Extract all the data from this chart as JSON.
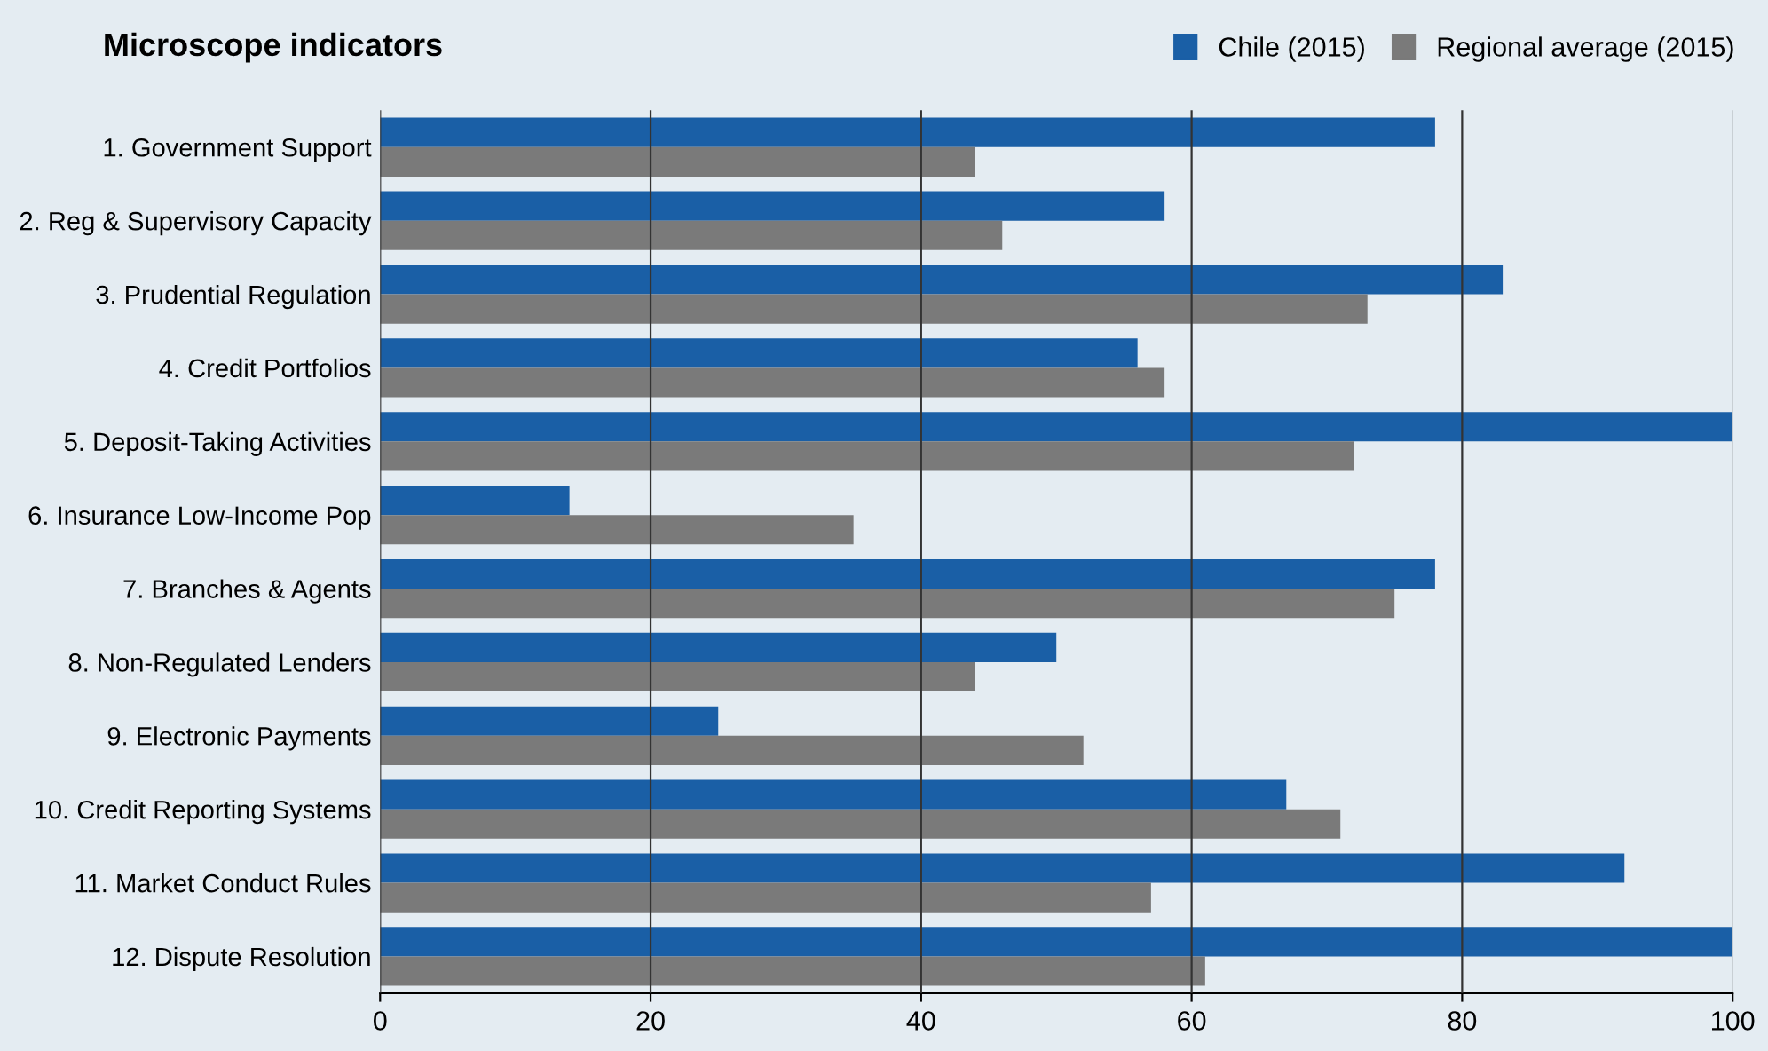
{
  "chart_data": {
    "type": "bar",
    "orientation": "horizontal",
    "title": "Microscope indicators",
    "categories": [
      "1. Government Support",
      "2. Reg & Supervisory Capacity",
      "3. Prudential Regulation",
      "4. Credit Portfolios",
      "5. Deposit-Taking Activities",
      "6. Insurance Low-Income Pop",
      "7. Branches & Agents",
      "8. Non-Regulated Lenders",
      "9. Electronic Payments",
      "10. Credit Reporting Systems",
      "11. Market Conduct Rules",
      "12. Dispute Resolution"
    ],
    "series": [
      {
        "name": "Chile (2015)",
        "color": "#1a5fa6",
        "values": [
          78,
          58,
          83,
          56,
          100,
          14,
          78,
          50,
          25,
          67,
          92,
          100
        ]
      },
      {
        "name": "Regional average (2015)",
        "color": "#7a7a7a",
        "values": [
          44,
          46,
          73,
          58,
          72,
          35,
          75,
          44,
          52,
          71,
          57,
          61
        ]
      }
    ],
    "xlim": [
      0,
      100
    ],
    "xticks": [
      0,
      20,
      40,
      60,
      80,
      100
    ],
    "grid": "x",
    "legend": "top right"
  }
}
